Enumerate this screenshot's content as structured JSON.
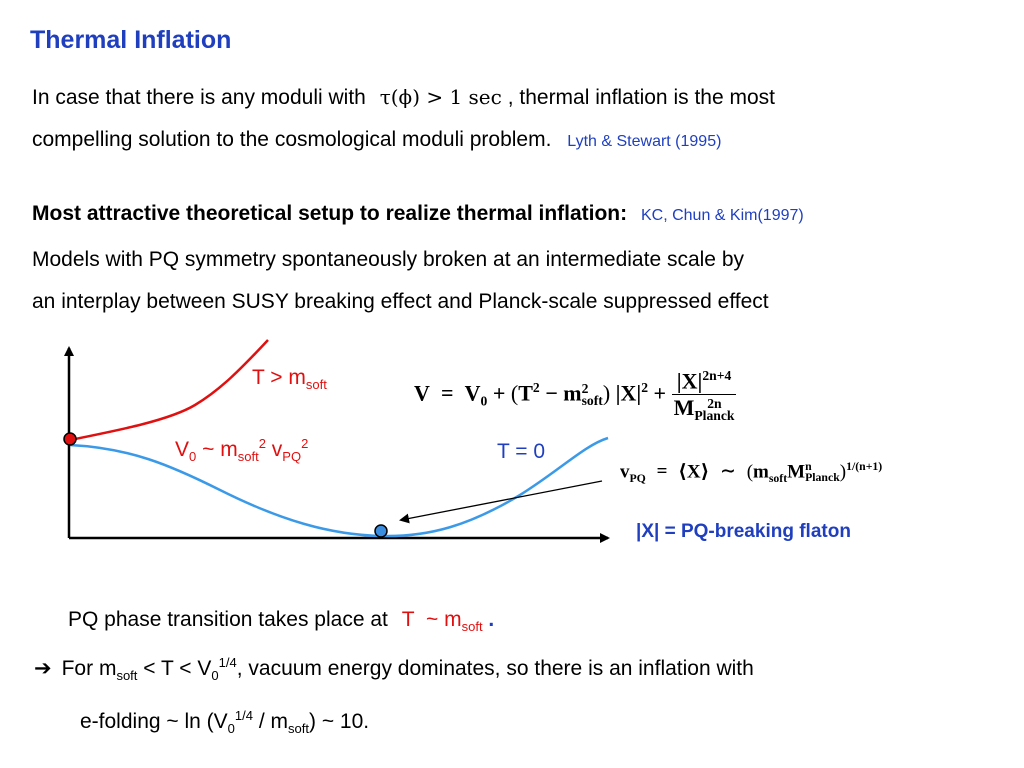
{
  "title": "Thermal Inflation",
  "intro": {
    "line1_a": "In case that there is any moduli with",
    "line1_math": "τ(ϕ) > 1 sec",
    "line1_b": ",  thermal inflation is the most",
    "line2": "compelling solution to the cosmological moduli problem.",
    "cite": "Lyth & Stewart (1995)"
  },
  "setup": {
    "heading": "Most attractive theoretical setup to realize thermal inflation:",
    "cite": "KC, Chun & Kim(1997)",
    "line1": "Models with PQ symmetry spontaneously broken at an intermediate scale by",
    "line2": "an interplay between SUSY breaking effect and Planck-scale suppressed effect"
  },
  "graph": {
    "label_high_T": {
      "main": "T > m",
      "sub": "soft"
    },
    "label_v0": {
      "a": "V",
      "a_sub": "0",
      "b": " ~ m",
      "b_sub": "soft",
      "b_sup": "2",
      "c": " v",
      "c_sub": "PQ",
      "c_sup": "2"
    },
    "label_T0": "T = 0",
    "flaton_label": "|X| = PQ-breaking flaton",
    "colors": {
      "high_T_curve": "#e01010",
      "zero_T_curve": "#3b9ae8",
      "text_red": "#e01010",
      "text_blue": "#1f3fbf"
    }
  },
  "equations": {
    "potential": {
      "lhs": "V",
      "eq": "=",
      "v0": "V",
      "v0_sub": "0",
      "plus1": "+",
      "paren": "T",
      "paren_sup": "2",
      "minus": "−",
      "m": "m",
      "m_sup": "2",
      "m_sub": "soft",
      "absx": "|X|",
      "absx_sup": "2",
      "plus2": "+",
      "num": "|X|",
      "num_sup": "2n+4",
      "den": "M",
      "den_sup": "2n",
      "den_sub": "Planck"
    },
    "vev": {
      "lhs": "v",
      "lhs_sub": "PQ",
      "eq": "=",
      "mid": "⟨X⟩",
      "sim": "∼",
      "m": "m",
      "m_sub": "soft",
      "M": "M",
      "M_sup": "n",
      "M_sub": "Planck",
      "exp": "1/(n+1)"
    }
  },
  "phase": {
    "a": "PQ phase transition takes place at",
    "T": "T",
    "sim": "~ m",
    "sub": "soft",
    "dot": "."
  },
  "conclusion": {
    "arrow": "➔",
    "line1": {
      "for": "For  m",
      "sub1": "soft",
      "mid": "  < T <  V",
      "sub2": "0",
      "sup2": "1/4",
      "rest": ",  vacuum energy dominates, so there is an inflation with"
    },
    "line2": {
      "a": "e-folding  ~  ln (V",
      "sub": "0",
      "sup": "1/4",
      "b": " / m",
      "sub2": "soft",
      "c": ")  ~ 10."
    }
  }
}
